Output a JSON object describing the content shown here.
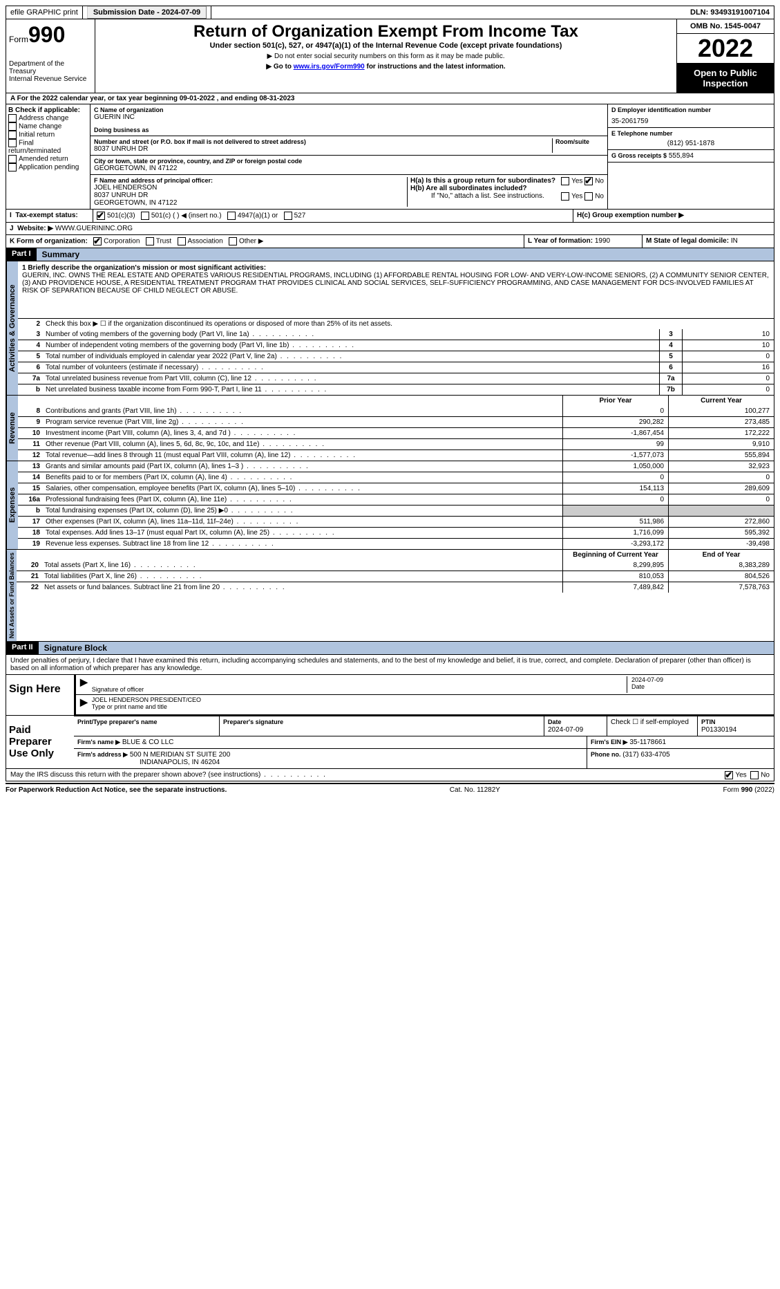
{
  "top": {
    "efile": "efile GRAPHIC print",
    "submission_label": "Submission Date - 2024-07-09",
    "dln_label": "DLN: 93493191007104"
  },
  "header": {
    "form_word": "Form",
    "form_num": "990",
    "dept": "Department of the Treasury",
    "irs": "Internal Revenue Service",
    "title": "Return of Organization Exempt From Income Tax",
    "sub1": "Under section 501(c), 527, or 4947(a)(1) of the Internal Revenue Code (except private foundations)",
    "sub2": "▶ Do not enter social security numbers on this form as it may be made public.",
    "sub3a": "▶ Go to ",
    "sub3_link": "www.irs.gov/Form990",
    "sub3b": " for instructions and the latest information.",
    "omb": "OMB No. 1545-0047",
    "year": "2022",
    "open": "Open to Public Inspection"
  },
  "A": "For the 2022 calendar year, or tax year beginning 09-01-2022   , and ending 08-31-2023",
  "B": {
    "hdr": "B Check if applicable:",
    "items": [
      "Address change",
      "Name change",
      "Initial return",
      "Final return/terminated",
      "Amended return",
      "Application pending"
    ]
  },
  "C": {
    "name_lbl": "C Name of organization",
    "name": "GUERIN INC",
    "dba_lbl": "Doing business as",
    "street_lbl": "Number and street (or P.O. box if mail is not delivered to street address)",
    "street": "8037 UNRUH DR",
    "room_lbl": "Room/suite",
    "city_lbl": "City or town, state or province, country, and ZIP or foreign postal code",
    "city": "GEORGETOWN, IN  47122",
    "F_lbl": "F Name and address of principal officer:",
    "F_name": "JOEL HENDERSON",
    "F_addr1": "8037 UNRUH DR",
    "F_addr2": "GEORGETOWN, IN  47122"
  },
  "D": {
    "lbl": "D Employer identification number",
    "val": "35-2061759"
  },
  "E": {
    "lbl": "E Telephone number",
    "val": "(812) 951-1878"
  },
  "G": {
    "lbl": "G Gross receipts $",
    "val": "555,894"
  },
  "H": {
    "a": "H(a)  Is this a group return for subordinates?",
    "b": "H(b)  Are all subordinates included?",
    "b_note": "If \"No,\" attach a list. See instructions.",
    "c": "H(c)  Group exemption number ▶",
    "yes": "Yes",
    "no": "No"
  },
  "I": {
    "lbl": "Tax-exempt status:",
    "opts": [
      "501(c)(3)",
      "501(c) (  ) ◀ (insert no.)",
      "4947(a)(1) or",
      "527"
    ]
  },
  "J": {
    "lbl": "Website: ▶",
    "val": "WWW.GUERININC.ORG"
  },
  "K": {
    "lbl": "K Form of organization:",
    "opts": [
      "Corporation",
      "Trust",
      "Association",
      "Other ▶"
    ]
  },
  "L": {
    "lbl": "L Year of formation:",
    "val": "1990"
  },
  "M": {
    "lbl": "M State of legal domicile:",
    "val": "IN"
  },
  "part1": {
    "hdr": "Part I",
    "title": "Summary",
    "side_ag": "Activities & Governance",
    "side_rev": "Revenue",
    "side_exp": "Expenses",
    "side_na": "Net Assets or Fund Balances",
    "l1_lbl": "1 Briefly describe the organization's mission or most significant activities:",
    "l1": "GUERIN, INC. OWNS THE REAL ESTATE AND OPERATES VARIOUS RESIDENTIAL PROGRAMS, INCLUDING (1) AFFORDABLE RENTAL HOUSING FOR LOW- AND VERY-LOW-INCOME SENIORS, (2) A COMMUNITY SENIOR CENTER, (3) AND PROVIDENCE HOUSE, A RESIDENTIAL TREATMENT PROGRAM THAT PROVIDES CLINICAL AND SOCIAL SERVICES, SELF-SUFFICIENCY PROGRAMMING, AND CASE MANAGEMENT FOR DCS-INVOLVED FAMILIES AT RISK OF SEPARATION BECAUSE OF CHILD NEGLECT OR ABUSE.",
    "l2": "Check this box ▶ ☐  if the organization discontinued its operations or disposed of more than 25% of its net assets.",
    "rows_ag": [
      {
        "n": "3",
        "d": "Number of voting members of the governing body (Part VI, line 1a)",
        "b": "3",
        "v": "10"
      },
      {
        "n": "4",
        "d": "Number of independent voting members of the governing body (Part VI, line 1b)",
        "b": "4",
        "v": "10"
      },
      {
        "n": "5",
        "d": "Total number of individuals employed in calendar year 2022 (Part V, line 2a)",
        "b": "5",
        "v": "0"
      },
      {
        "n": "6",
        "d": "Total number of volunteers (estimate if necessary)",
        "b": "6",
        "v": "16"
      },
      {
        "n": "7a",
        "d": "Total unrelated business revenue from Part VIII, column (C), line 12",
        "b": "7a",
        "v": "0"
      },
      {
        "n": "b",
        "d": "Net unrelated business taxable income from Form 990-T, Part I, line 11",
        "b": "7b",
        "v": "0"
      }
    ],
    "col_prior": "Prior Year",
    "col_curr": "Current Year",
    "rows_rev": [
      {
        "n": "8",
        "d": "Contributions and grants (Part VIII, line 1h)",
        "p": "0",
        "c": "100,277"
      },
      {
        "n": "9",
        "d": "Program service revenue (Part VIII, line 2g)",
        "p": "290,282",
        "c": "273,485"
      },
      {
        "n": "10",
        "d": "Investment income (Part VIII, column (A), lines 3, 4, and 7d )",
        "p": "-1,867,454",
        "c": "172,222"
      },
      {
        "n": "11",
        "d": "Other revenue (Part VIII, column (A), lines 5, 6d, 8c, 9c, 10c, and 11e)",
        "p": "99",
        "c": "9,910"
      },
      {
        "n": "12",
        "d": "Total revenue—add lines 8 through 11 (must equal Part VIII, column (A), line 12)",
        "p": "-1,577,073",
        "c": "555,894"
      }
    ],
    "rows_exp": [
      {
        "n": "13",
        "d": "Grants and similar amounts paid (Part IX, column (A), lines 1–3 )",
        "p": "1,050,000",
        "c": "32,923"
      },
      {
        "n": "14",
        "d": "Benefits paid to or for members (Part IX, column (A), line 4)",
        "p": "0",
        "c": "0"
      },
      {
        "n": "15",
        "d": "Salaries, other compensation, employee benefits (Part IX, column (A), lines 5–10)",
        "p": "154,113",
        "c": "289,609"
      },
      {
        "n": "16a",
        "d": "Professional fundraising fees (Part IX, column (A), line 11e)",
        "p": "0",
        "c": "0"
      },
      {
        "n": "b",
        "d": "Total fundraising expenses (Part IX, column (D), line 25) ▶0",
        "p": "",
        "c": "",
        "shaded": true
      },
      {
        "n": "17",
        "d": "Other expenses (Part IX, column (A), lines 11a–11d, 11f–24e)",
        "p": "511,986",
        "c": "272,860"
      },
      {
        "n": "18",
        "d": "Total expenses. Add lines 13–17 (must equal Part IX, column (A), line 25)",
        "p": "1,716,099",
        "c": "595,392"
      },
      {
        "n": "19",
        "d": "Revenue less expenses. Subtract line 18 from line 12",
        "p": "-3,293,172",
        "c": "-39,498"
      }
    ],
    "col_boy": "Beginning of Current Year",
    "col_eoy": "End of Year",
    "rows_na": [
      {
        "n": "20",
        "d": "Total assets (Part X, line 16)",
        "p": "8,299,895",
        "c": "8,383,289"
      },
      {
        "n": "21",
        "d": "Total liabilities (Part X, line 26)",
        "p": "810,053",
        "c": "804,526"
      },
      {
        "n": "22",
        "d": "Net assets or fund balances. Subtract line 21 from line 20",
        "p": "7,489,842",
        "c": "7,578,763"
      }
    ]
  },
  "part2": {
    "hdr": "Part II",
    "title": "Signature Block",
    "decl": "Under penalties of perjury, I declare that I have examined this return, including accompanying schedules and statements, and to the best of my knowledge and belief, it is true, correct, and complete. Declaration of preparer (other than officer) is based on all information of which preparer has any knowledge.",
    "sign_here": "Sign Here",
    "sig_officer": "Signature of officer",
    "date": "Date",
    "date_val": "2024-07-09",
    "officer_name": "JOEL HENDERSON  PRESIDENT/CEO",
    "type_name": "Type or print name and title",
    "paid": "Paid Preparer Use Only",
    "prep_name_lbl": "Print/Type preparer's name",
    "prep_sig_lbl": "Preparer's signature",
    "prep_date_lbl": "Date",
    "prep_date": "2024-07-09",
    "check_self": "Check ☐ if self-employed",
    "ptin_lbl": "PTIN",
    "ptin": "P01330194",
    "firm_name_lbl": "Firm's name  ▶",
    "firm_name": "BLUE & CO LLC",
    "firm_ein_lbl": "Firm's EIN ▶",
    "firm_ein": "35-1178661",
    "firm_addr_lbl": "Firm's address ▶",
    "firm_addr1": "500 N MERIDIAN ST SUITE 200",
    "firm_addr2": "INDIANAPOLIS, IN  46204",
    "phone_lbl": "Phone no.",
    "phone": "(317) 633-4705",
    "discuss": "May the IRS discuss this return with the preparer shown above? (see instructions)"
  },
  "footer": {
    "pra": "For Paperwork Reduction Act Notice, see the separate instructions.",
    "cat": "Cat. No. 11282Y",
    "form": "Form 990 (2022)"
  }
}
